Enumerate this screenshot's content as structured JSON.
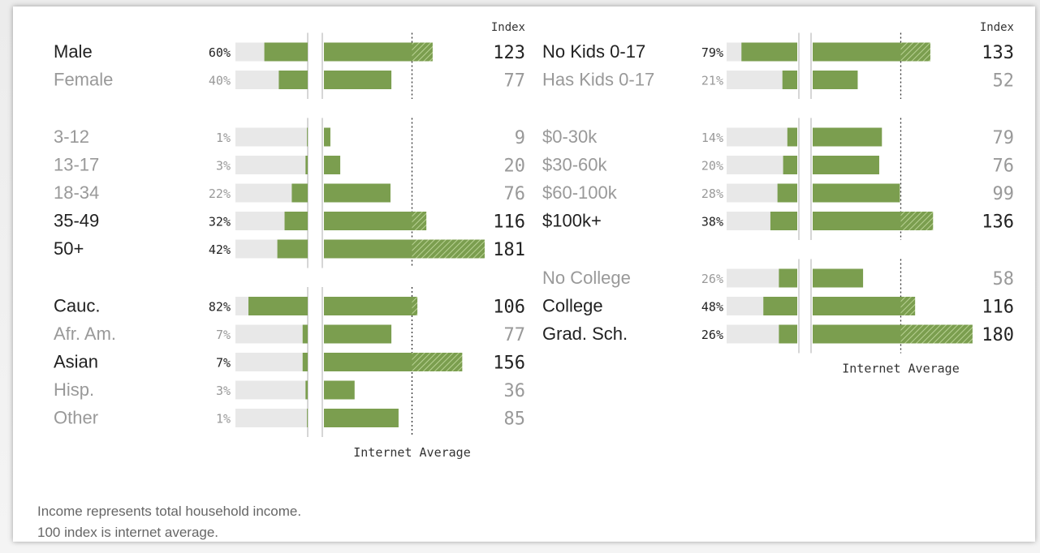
{
  "colors": {
    "bar": "#7b9e4f",
    "track": "#e8e8e8",
    "hatch": "#a8c47e",
    "text_dark": "#222222",
    "text_muted": "#999999",
    "axis": "#bbbbbb",
    "average_line": "#333333"
  },
  "chart_data": {
    "type": "bar",
    "description_axis": "Index (100 = internet average)",
    "index_label": "Index",
    "average_label": "Internet Average",
    "average_value": 100,
    "index_max": 181,
    "groups": [
      {
        "column": "left",
        "rows": [
          {
            "label": "Male",
            "pct_label": "60%",
            "share": 60,
            "index": 123,
            "emphasis": true
          },
          {
            "label": "Female",
            "pct_label": "40%",
            "share": 40,
            "index": 77,
            "emphasis": false
          }
        ]
      },
      {
        "column": "left",
        "rows": [
          {
            "label": "3-12",
            "pct_label": "1%",
            "share": 1,
            "index": 9,
            "emphasis": false
          },
          {
            "label": "13-17",
            "pct_label": "3%",
            "share": 3,
            "index": 20,
            "emphasis": false
          },
          {
            "label": "18-34",
            "pct_label": "22%",
            "share": 22,
            "index": 76,
            "emphasis": false
          },
          {
            "label": "35-49",
            "pct_label": "32%",
            "share": 32,
            "index": 116,
            "emphasis": true
          },
          {
            "label": "50+",
            "pct_label": "42%",
            "share": 42,
            "index": 181,
            "emphasis": true
          }
        ]
      },
      {
        "column": "left",
        "rows": [
          {
            "label": "Cauc.",
            "pct_label": "82%",
            "share": 82,
            "index": 106,
            "emphasis": true
          },
          {
            "label": "Afr. Am.",
            "pct_label": "7%",
            "share": 7,
            "index": 77,
            "emphasis": false
          },
          {
            "label": "Asian",
            "pct_label": "7%",
            "share": 7,
            "index": 156,
            "emphasis": true
          },
          {
            "label": "Hisp.",
            "pct_label": "3%",
            "share": 3,
            "index": 36,
            "emphasis": false
          },
          {
            "label": "Other",
            "pct_label": "1%",
            "share": 1,
            "index": 85,
            "emphasis": false
          }
        ]
      },
      {
        "column": "right",
        "rows": [
          {
            "label": "No Kids 0-17",
            "pct_label": "79%",
            "share": 79,
            "index": 133,
            "emphasis": true
          },
          {
            "label": "Has Kids 0-17",
            "pct_label": "21%",
            "share": 21,
            "index": 52,
            "emphasis": false
          }
        ]
      },
      {
        "column": "right",
        "rows": [
          {
            "label": "$0-30k",
            "pct_label": "14%",
            "share": 14,
            "index": 79,
            "emphasis": false
          },
          {
            "label": "$30-60k",
            "pct_label": "20%",
            "share": 20,
            "index": 76,
            "emphasis": false
          },
          {
            "label": "$60-100k",
            "pct_label": "28%",
            "share": 28,
            "index": 99,
            "emphasis": false
          },
          {
            "label": "$100k+",
            "pct_label": "38%",
            "share": 38,
            "index": 136,
            "emphasis": true
          }
        ]
      },
      {
        "column": "right",
        "rows": [
          {
            "label": "No College",
            "pct_label": "26%",
            "share": 26,
            "index": 58,
            "emphasis": false
          },
          {
            "label": "College",
            "pct_label": "48%",
            "share": 48,
            "index": 116,
            "emphasis": true
          },
          {
            "label": "Grad. Sch.",
            "pct_label": "26%",
            "share": 26,
            "index": 180,
            "emphasis": true
          }
        ]
      }
    ]
  },
  "footnotes": {
    "line1": "Income represents total household income.",
    "line2": "100 index is internet average."
  }
}
